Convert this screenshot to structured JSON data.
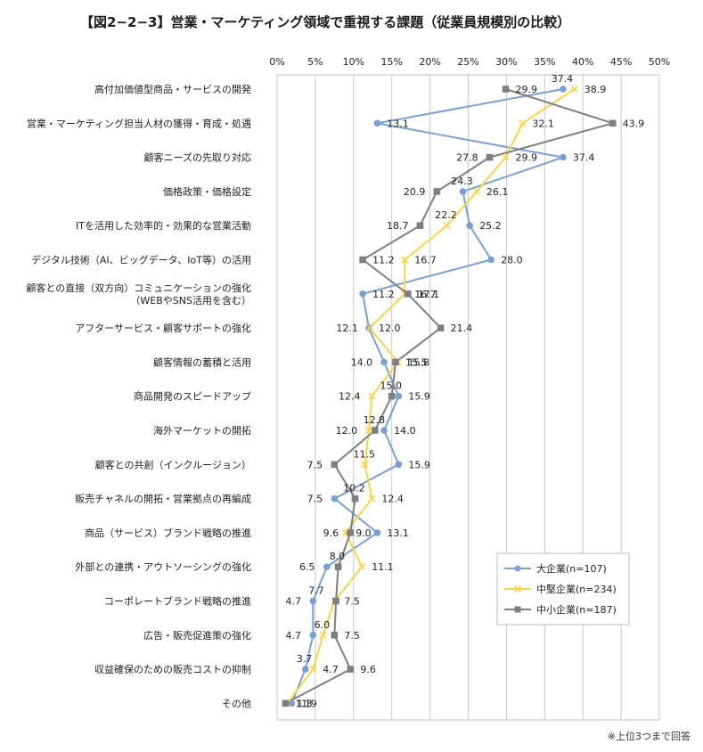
{
  "title": "【図2−2−3】営業・マーケティング領域で重視する課題（従業員規模別の比較）",
  "footnote": "※上位3つまで回答",
  "chart_data": {
    "type": "line",
    "orientation": "horizontal",
    "x_ticks": [
      "0%",
      "5%",
      "10%",
      "15%",
      "20%",
      "25%",
      "30%",
      "35%",
      "40%",
      "45%",
      "50%"
    ],
    "xlim": [
      0,
      50
    ],
    "grid": true,
    "legend_position": "bottom-right",
    "categories": [
      "高付加価値型商品・サービスの開発",
      "営業・マーケティング担当人材の獲得・育成・処遇",
      "顧客ニーズの先取り対応",
      "価格政策・価格設定",
      "ITを活用した効率的・効果的な営業活動",
      "デジタル技術（AI、ビッグデータ、IoT等）の活用",
      "顧客との直接（双方向）コミュニケーションの強化（WEBやSNS活用を含む）",
      "アフターサービス・顧客サポートの強化",
      "顧客情報の蓄積と活用",
      "商品開発のスピードアップ",
      "海外マーケットの開拓",
      "顧客との共創（インクルージョン）",
      "販売チャネルの開拓・営業拠点の再編成",
      "商品（サービス）ブランド戦略の推進",
      "外部との連携・アウトソーシングの強化",
      "コーポレートブランド戦略の推進",
      "広告・販売促進策の強化",
      "収益確保のための販売コストの抑制",
      "その他"
    ],
    "category_lines": [
      [
        "高付加価値型商品・サービスの開発"
      ],
      [
        "営業・マーケティング担当人材の獲得・育成・処遇"
      ],
      [
        "顧客ニーズの先取り対応"
      ],
      [
        "価格政策・価格設定"
      ],
      [
        "ITを活用した効率的・効果的な営業活動"
      ],
      [
        "デジタル技術（AI、ビッグデータ、IoT等）の活用"
      ],
      [
        "顧客との直接（双方向）コミュニケーションの強化",
        "（WEBやSNS活用を含む）"
      ],
      [
        "アフターサービス・顧客サポートの強化"
      ],
      [
        "顧客情報の蓄積と活用"
      ],
      [
        "商品開発のスピードアップ"
      ],
      [
        "海外マーケットの開拓"
      ],
      [
        "顧客との共創（インクルージョン）"
      ],
      [
        "販売チャネルの開拓・営業拠点の再編成"
      ],
      [
        "商品（サービス）ブランド戦略の推進"
      ],
      [
        "外部との連携・アウトソーシングの強化"
      ],
      [
        "コーポレートブランド戦略の推進"
      ],
      [
        "広告・販売促進策の強化"
      ],
      [
        "収益確保のための販売コストの抑制"
      ],
      [
        "その他"
      ]
    ],
    "series": [
      {
        "name": "大企業(n=107)",
        "color": "#7a9fd1",
        "marker": "circle",
        "values": [
          37.4,
          13.1,
          37.4,
          24.3,
          25.2,
          28.0,
          11.2,
          12.0,
          14.0,
          15.9,
          14.0,
          15.9,
          7.5,
          13.1,
          6.5,
          4.7,
          4.7,
          3.7,
          1.9
        ]
      },
      {
        "name": "中堅企業(n=234)",
        "color": "#f7d44a",
        "marker": "x",
        "values": [
          38.9,
          32.1,
          29.9,
          26.1,
          22.2,
          16.7,
          16.7,
          12.1,
          15.8,
          12.4,
          12.0,
          11.5,
          12.4,
          9.0,
          11.1,
          7.5,
          6.0,
          4.7,
          1.3
        ]
      },
      {
        "name": "中小企業(n=187)",
        "color": "#7f7f7f",
        "marker": "square",
        "values": [
          29.9,
          43.9,
          27.8,
          20.9,
          18.7,
          11.2,
          17.1,
          21.4,
          15.5,
          15.0,
          12.8,
          7.5,
          10.2,
          9.6,
          8.0,
          7.7,
          7.5,
          9.6,
          1.1
        ]
      }
    ]
  }
}
